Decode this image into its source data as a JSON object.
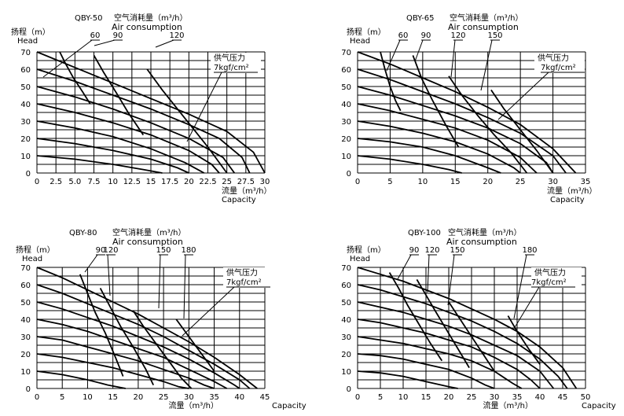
{
  "chart_data": [
    {
      "type": "line",
      "title": "QBY-50",
      "air_title_cn": "空气消耗量（m³/h）",
      "air_title_en": "Air consumption",
      "ylabel_cn": "扬程（m）",
      "ylabel_en": "Head",
      "xlabel_cn": "流量（m³/h）",
      "xlabel_en": "Capacity",
      "pressure_cn": "供气压力",
      "pressure_unit": "7kgf/cm²",
      "x_ticks": [
        "0",
        "2.5",
        "5.0",
        "7.5",
        "10",
        "12.5",
        "15",
        "17.5",
        "20",
        "22.5",
        "25",
        "27.5",
        "30"
      ],
      "y_ticks": [
        "0",
        "10",
        "20",
        "30",
        "40",
        "50",
        "60",
        "70"
      ],
      "xlim": [
        0,
        30
      ],
      "ylim": [
        0,
        70
      ],
      "grid": true,
      "air_labels": [
        "60",
        "90",
        "120"
      ],
      "air_series": [
        {
          "name": "60",
          "x": [
            3.0,
            3.8,
            4.8,
            6.0,
            7.0
          ],
          "y": [
            70,
            63,
            55,
            47,
            40
          ]
        },
        {
          "name": "90",
          "x": [
            7.5,
            8.8,
            10.5,
            12.0,
            14.0
          ],
          "y": [
            68,
            58,
            46,
            35,
            22
          ]
        },
        {
          "name": "120",
          "x": [
            14.5,
            16.5,
            18.5,
            20.5,
            22.5,
            25.0
          ],
          "y": [
            60,
            48,
            37,
            26,
            15,
            0
          ]
        }
      ],
      "pressure_series": [
        {
          "x": [
            0,
            5,
            10,
            15,
            20,
            25,
            28.5,
            30.0
          ],
          "y": [
            70,
            61,
            52,
            43,
            34,
            24,
            12,
            0
          ]
        },
        {
          "x": [
            0,
            5,
            10,
            15,
            20,
            24,
            27.0,
            28.0
          ],
          "y": [
            60,
            53,
            45,
            37,
            28,
            20,
            9,
            0
          ]
        },
        {
          "x": [
            0,
            5,
            10,
            15,
            20,
            24.5,
            26.0
          ],
          "y": [
            50,
            44,
            37,
            29,
            20,
            9,
            0
          ]
        },
        {
          "x": [
            0,
            5,
            10,
            15,
            20,
            23.0,
            24.0
          ],
          "y": [
            40,
            35,
            29,
            22,
            13,
            5,
            0
          ]
        },
        {
          "x": [
            0,
            5,
            10,
            15,
            19.5,
            22.0
          ],
          "y": [
            30,
            26,
            21,
            14,
            6,
            0
          ]
        },
        {
          "x": [
            0,
            5,
            10,
            15,
            18.5,
            20.0
          ],
          "y": [
            20,
            17,
            13,
            8,
            3,
            0
          ]
        },
        {
          "x": [
            0,
            5,
            10,
            14.0,
            16.5
          ],
          "y": [
            10,
            8,
            5,
            2,
            0
          ]
        }
      ]
    },
    {
      "type": "line",
      "title": "QBY-65",
      "air_title_cn": "空气消耗量（m³/h）",
      "air_title_en": "Air consumption",
      "ylabel_cn": "扬程（m）",
      "ylabel_en": "Head",
      "xlabel_cn": "流量（m³/h）",
      "xlabel_en": "Capacity",
      "pressure_cn": "供气压力",
      "pressure_unit": "7kgf/cm²",
      "x_ticks": [
        "0",
        "5",
        "10",
        "15",
        "20",
        "25",
        "30",
        "35"
      ],
      "y_ticks": [
        "0",
        "10",
        "20",
        "30",
        "40",
        "50",
        "60",
        "70"
      ],
      "xlim": [
        0,
        35
      ],
      "ylim": [
        0,
        70
      ],
      "grid": true,
      "air_labels": [
        "60",
        "90",
        "120",
        "150"
      ],
      "air_series": [
        {
          "name": "60",
          "x": [
            3.5,
            4.2,
            5.0,
            5.8,
            6.6
          ],
          "y": [
            70,
            60,
            50,
            42,
            36
          ]
        },
        {
          "name": "90",
          "x": [
            8.5,
            9.8,
            11.5,
            13.5,
            15.5
          ],
          "y": [
            68,
            55,
            42,
            28,
            15
          ]
        },
        {
          "name": "120",
          "x": [
            14.0,
            16.0,
            18.5,
            21.0,
            23.5,
            26.0
          ],
          "y": [
            56,
            45,
            33,
            22,
            12,
            0
          ]
        },
        {
          "name": "150",
          "x": [
            20.5,
            22.5,
            25.0,
            27.5,
            30.0
          ],
          "y": [
            48,
            37,
            25,
            13,
            0
          ]
        }
      ],
      "pressure_series": [
        {
          "x": [
            0,
            5,
            10,
            15,
            20,
            25,
            30,
            33.5
          ],
          "y": [
            70,
            63,
            55,
            47,
            38,
            28,
            14,
            0
          ]
        },
        {
          "x": [
            0,
            5,
            10,
            15,
            20,
            25,
            30,
            32.0
          ],
          "y": [
            60,
            54,
            47,
            40,
            32,
            23,
            10,
            0
          ]
        },
        {
          "x": [
            0,
            5,
            10,
            15,
            20,
            25,
            29.0,
            30.0
          ],
          "y": [
            50,
            45,
            39,
            33,
            26,
            17,
            6,
            0
          ]
        },
        {
          "x": [
            0,
            5,
            10,
            15,
            20,
            25,
            27.5
          ],
          "y": [
            40,
            36,
            31,
            26,
            19,
            9,
            0
          ]
        },
        {
          "x": [
            0,
            5,
            10,
            15,
            20,
            24.0,
            25.0
          ],
          "y": [
            30,
            27,
            23,
            18,
            11,
            3,
            0
          ]
        },
        {
          "x": [
            0,
            5,
            10,
            15,
            20.0,
            22.0
          ],
          "y": [
            20,
            18,
            15,
            10,
            3,
            0
          ]
        },
        {
          "x": [
            0,
            5,
            10,
            14.0,
            16.0
          ],
          "y": [
            10,
            8,
            5,
            2,
            0
          ]
        }
      ]
    },
    {
      "type": "line",
      "title": "QBY-80",
      "air_title_cn": "空气消耗量（m³/h）",
      "air_title_en": "Air consumption",
      "ylabel_cn": "扬程（m）",
      "ylabel_en": "Head",
      "xlabel_cn": "流量（m³/h）",
      "xlabel_en": "Capacity",
      "pressure_cn": "供气压力",
      "pressure_unit": "7kgf/cm²",
      "x_ticks": [
        "0",
        "5",
        "10",
        "15",
        "20",
        "25",
        "30",
        "35",
        "40",
        "45"
      ],
      "y_ticks": [
        "0",
        "10",
        "20",
        "30",
        "40",
        "50",
        "60",
        "70"
      ],
      "xlim": [
        0,
        45
      ],
      "ylim": [
        0,
        70
      ],
      "grid": true,
      "air_labels": [
        "90",
        "120",
        "150",
        "180"
      ],
      "air_series": [
        {
          "name": "90",
          "x": [
            8.5,
            10.0,
            11.5,
            13.5,
            15.5,
            17.0
          ],
          "y": [
            66,
            55,
            44,
            32,
            18,
            7
          ]
        },
        {
          "name": "120",
          "x": [
            12.5,
            14.5,
            16.5,
            19.0,
            21.5,
            23.0
          ],
          "y": [
            58,
            47,
            36,
            24,
            11,
            2
          ]
        },
        {
          "name": "150",
          "x": [
            19.0,
            21.0,
            23.5,
            26.0,
            28.5,
            30.5
          ],
          "y": [
            45,
            36,
            26,
            16,
            6,
            0
          ]
        },
        {
          "name": "180",
          "x": [
            27.5,
            29.5,
            32.0,
            35.0
          ],
          "y": [
            40,
            32,
            22,
            10
          ]
        }
      ],
      "pressure_series": [
        {
          "x": [
            0,
            5,
            10,
            15,
            20,
            25,
            30,
            35,
            40,
            43.5
          ],
          "y": [
            70,
            64,
            57,
            50,
            43,
            35,
            27,
            18,
            8,
            0
          ]
        },
        {
          "x": [
            0,
            5,
            10,
            15,
            20,
            25,
            30,
            35,
            40,
            42.0
          ],
          "y": [
            60,
            55,
            49,
            43,
            37,
            30,
            22,
            14,
            5,
            0
          ]
        },
        {
          "x": [
            0,
            5,
            10,
            15,
            20,
            25,
            30,
            35,
            39.0,
            40.0
          ],
          "y": [
            50,
            46,
            41,
            36,
            30,
            24,
            17,
            9,
            2,
            0
          ]
        },
        {
          "x": [
            0,
            5,
            10,
            15,
            20,
            25,
            30,
            35,
            37.5
          ],
          "y": [
            40,
            37,
            33,
            28,
            23,
            18,
            11,
            4,
            0
          ]
        },
        {
          "x": [
            0,
            5,
            10,
            15,
            20,
            25,
            30,
            33.0,
            35.0
          ],
          "y": [
            30,
            28,
            24,
            20,
            16,
            11,
            6,
            2,
            0
          ]
        },
        {
          "x": [
            0,
            5,
            10,
            15,
            20,
            25,
            28.0,
            30.0
          ],
          "y": [
            20,
            18,
            15,
            12,
            8,
            4,
            1,
            0
          ]
        },
        {
          "x": [
            0,
            5,
            10,
            14.0,
            17.5
          ],
          "y": [
            10,
            8,
            5,
            2,
            0
          ]
        }
      ]
    },
    {
      "type": "line",
      "title": "QBY-100",
      "air_title_cn": "空气消耗量（m³/h）",
      "air_title_en": "Air consumption",
      "ylabel_cn": "扬程（m）",
      "ylabel_en": "Head",
      "xlabel_cn": "流量（m³/h）",
      "xlabel_en": "Capacity",
      "pressure_cn": "供气压力",
      "pressure_unit": "7kgf/cm²",
      "x_ticks": [
        "0",
        "5",
        "10",
        "15",
        "20",
        "25",
        "30",
        "35",
        "40",
        "45",
        "50"
      ],
      "y_ticks": [
        "0",
        "10",
        "20",
        "30",
        "40",
        "50",
        "60",
        "70"
      ],
      "xlim": [
        0,
        50
      ],
      "ylim": [
        0,
        70
      ],
      "grid": true,
      "air_labels": [
        "90",
        "120",
        "150",
        "180"
      ],
      "air_series": [
        {
          "name": "90",
          "x": [
            7.0,
            9.0,
            11.0,
            13.5,
            16.0,
            18.5
          ],
          "y": [
            67,
            58,
            48,
            37,
            26,
            16
          ]
        },
        {
          "name": "120",
          "x": [
            13.0,
            15.0,
            17.0,
            19.5,
            22.0,
            24.5
          ],
          "y": [
            63,
            54,
            45,
            34,
            23,
            12
          ]
        },
        {
          "name": "150",
          "x": [
            20.0,
            22.5,
            25.0,
            27.5,
            30.0
          ],
          "y": [
            50,
            40,
            30,
            20,
            10
          ]
        },
        {
          "name": "180",
          "x": [
            33.0,
            35.0,
            37.5,
            40.0
          ],
          "y": [
            42,
            33,
            23,
            14
          ]
        }
      ],
      "pressure_series": [
        {
          "x": [
            0,
            5,
            10,
            15,
            20,
            25,
            30,
            35,
            40,
            45,
            48.0
          ],
          "y": [
            70,
            66,
            62,
            57,
            52,
            46,
            40,
            33,
            24,
            12,
            0
          ]
        },
        {
          "x": [
            0,
            5,
            10,
            15,
            20,
            25,
            30,
            35,
            40,
            44,
            46.0
          ],
          "y": [
            60,
            57,
            53,
            49,
            44,
            39,
            33,
            26,
            17,
            7,
            0
          ]
        },
        {
          "x": [
            0,
            5,
            10,
            15,
            20,
            25,
            30,
            35,
            40,
            43.0
          ],
          "y": [
            50,
            47,
            44,
            40,
            36,
            31,
            25,
            19,
            10,
            0
          ]
        },
        {
          "x": [
            0,
            5,
            10,
            15,
            20,
            25,
            30,
            35,
            38.0,
            40.0
          ],
          "y": [
            40,
            38,
            35,
            32,
            28,
            24,
            18,
            11,
            5,
            0
          ]
        },
        {
          "x": [
            0,
            5,
            10,
            15,
            20,
            25,
            30,
            34.0,
            36.0
          ],
          "y": [
            30,
            28,
            26,
            23,
            20,
            16,
            10,
            3,
            0
          ]
        },
        {
          "x": [
            0,
            5,
            10,
            15,
            20,
            25,
            28.0,
            30.0
          ],
          "y": [
            20,
            19,
            17,
            14,
            11,
            6,
            2,
            0
          ]
        },
        {
          "x": [
            0,
            5,
            10,
            15,
            20,
            22.0
          ],
          "y": [
            10,
            9,
            7,
            4,
            1,
            0
          ]
        }
      ]
    }
  ]
}
